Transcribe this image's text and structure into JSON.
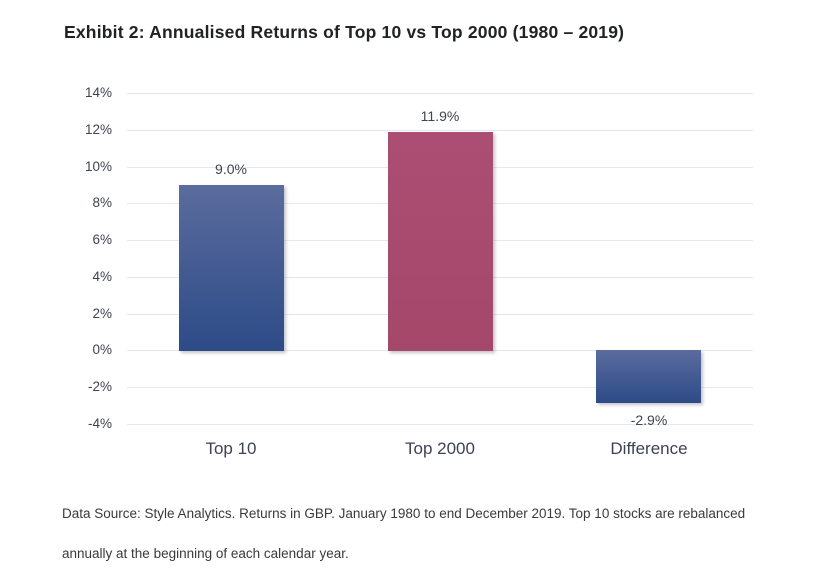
{
  "page": {
    "title": "Exhibit 2: Annualised Returns of Top 10 vs Top 2000 (1980 – 2019)"
  },
  "footer": {
    "text": "Data Source: Style Analytics. Returns in GBP. January 1980 to end December 2019. Top 10 stocks are rebalanced annually at the beginning of each calendar year."
  },
  "chart_data": {
    "type": "bar",
    "title": "Exhibit 2: Annualised Returns of Top 10 vs Top 2000 (1980 – 2019)",
    "categories": [
      "Top 10",
      "Top 2000",
      "Difference"
    ],
    "values": [
      9.0,
      11.9,
      -2.9
    ],
    "value_labels": [
      "9.0%",
      "11.9%",
      "-2.9%"
    ],
    "ylim": [
      -4,
      14
    ],
    "ytick_step": 2,
    "ytick_labels": [
      "14%",
      "12%",
      "10%",
      "8%",
      "6%",
      "4%",
      "2%",
      "0%",
      "-2%",
      "-4%"
    ],
    "xlabel": "",
    "ylabel": "",
    "grid": true,
    "legend": "none",
    "colors": {
      "bar_blue_top": "#5b6c9e",
      "bar_blue_bottom": "#2d4b87",
      "bar_pink_top": "#ac4e73",
      "bar_pink_bottom": "#a54769",
      "gridline": "#e4e6f0"
    },
    "bar_color_keys": [
      "blue",
      "pink",
      "blue"
    ]
  }
}
